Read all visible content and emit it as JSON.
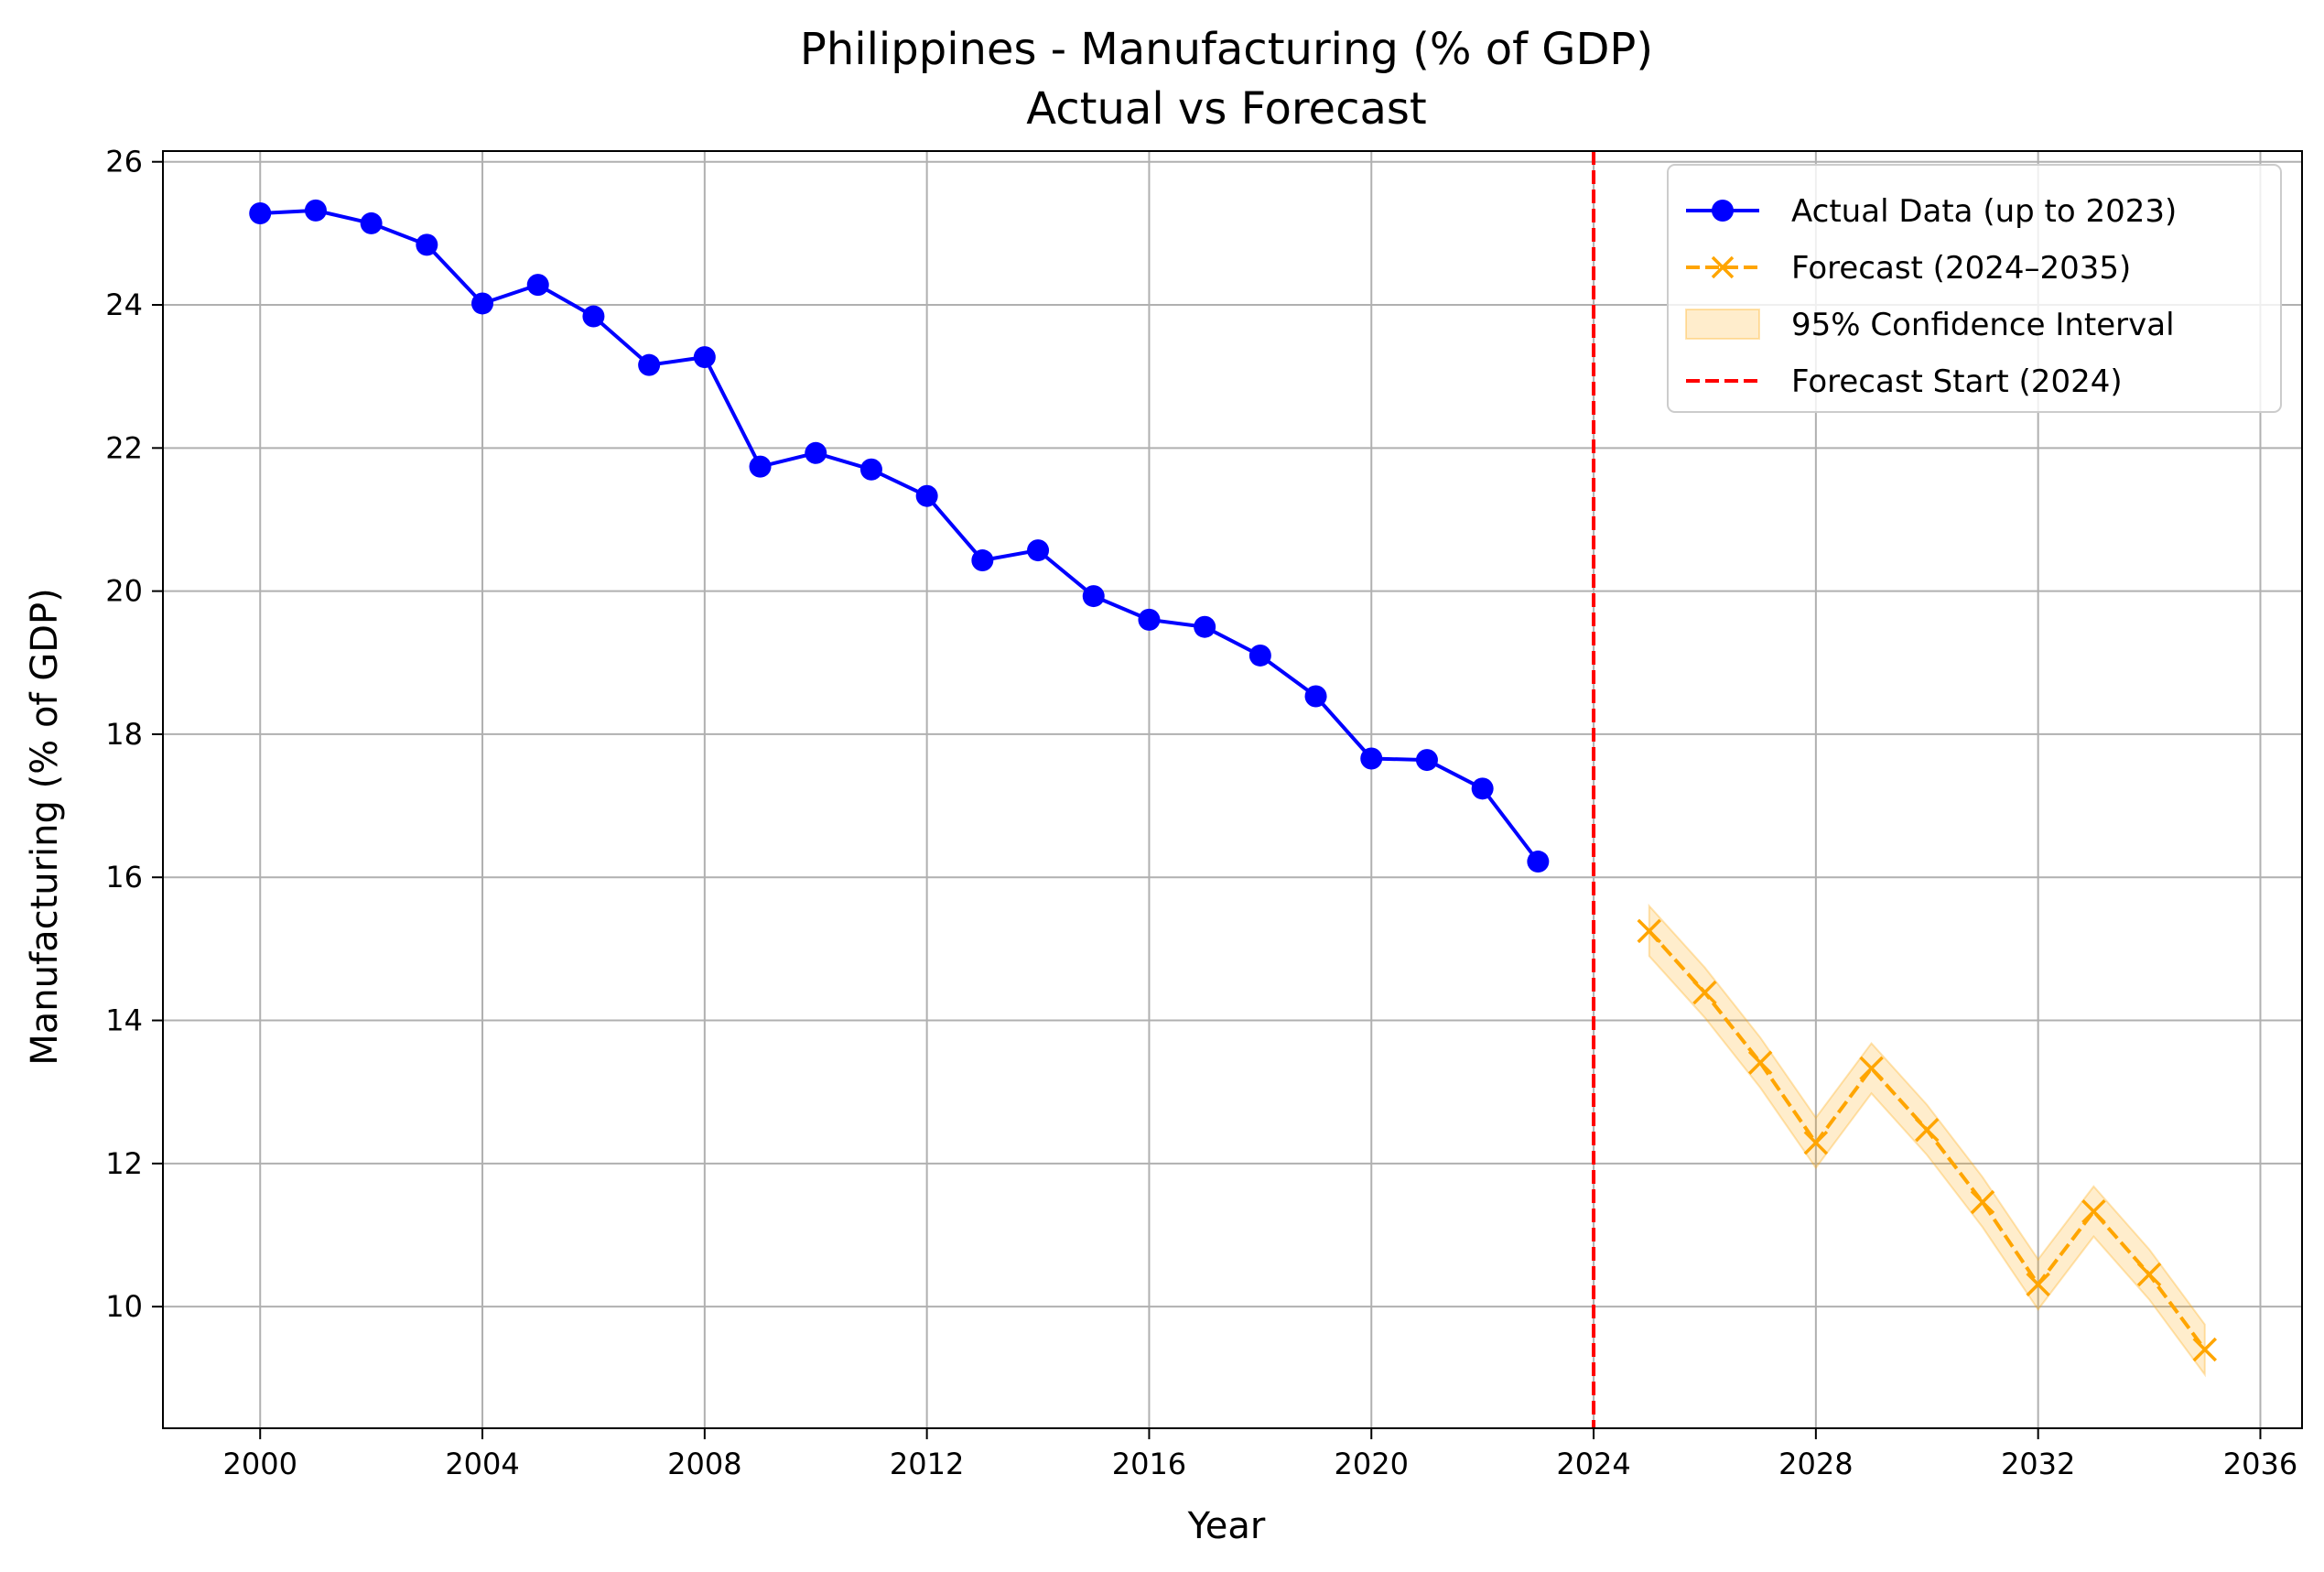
{
  "chart_data": {
    "type": "line",
    "title": "Philippines - Manufacturing (% of GDP)",
    "subtitle": "Actual vs Forecast",
    "xlabel": "Year",
    "ylabel": "Manufacturing (% of GDP)",
    "xlim": [
      1998.25,
      2036.75
    ],
    "ylim": [
      8.3,
      26.15
    ],
    "xticks": [
      2000,
      2004,
      2008,
      2012,
      2016,
      2020,
      2024,
      2028,
      2032,
      2036
    ],
    "yticks": [
      10,
      12,
      14,
      16,
      18,
      20,
      22,
      24,
      26
    ],
    "grid": true,
    "legend_position": "top-right",
    "series": [
      {
        "name": "Actual Data (up to 2023)",
        "color": "#0000ff",
        "marker": "circle",
        "x": [
          2000,
          2001,
          2002,
          2003,
          2004,
          2005,
          2006,
          2007,
          2008,
          2009,
          2010,
          2011,
          2012,
          2013,
          2014,
          2015,
          2016,
          2017,
          2018,
          2019,
          2020,
          2021,
          2022,
          2023
        ],
        "y": [
          25.28,
          25.32,
          25.14,
          24.84,
          24.02,
          24.28,
          23.84,
          23.16,
          23.27,
          21.74,
          21.93,
          21.7,
          21.33,
          20.43,
          20.57,
          19.93,
          19.6,
          19.5,
          19.1,
          18.53,
          17.66,
          17.64,
          17.24,
          16.22
        ]
      },
      {
        "name": "Forecast (2024–2035)",
        "color": "#ffa500",
        "marker": "x",
        "x": [
          2025,
          2026,
          2027,
          2028,
          2029,
          2030,
          2031,
          2032,
          2033,
          2034,
          2035
        ],
        "y": [
          15.25,
          14.39,
          13.41,
          12.29,
          13.33,
          12.47,
          11.46,
          10.31,
          11.33,
          10.45,
          9.4
        ]
      }
    ],
    "confidence_interval": {
      "name": "95% Confidence Interval",
      "color": "#ffa500",
      "x": [
        2025,
        2026,
        2027,
        2028,
        2029,
        2030,
        2031,
        2032,
        2033,
        2034,
        2035
      ],
      "lower": [
        14.9,
        14.04,
        13.06,
        11.94,
        12.98,
        12.12,
        11.11,
        9.96,
        10.98,
        10.1,
        9.05
      ],
      "upper": [
        15.6,
        14.74,
        13.76,
        12.64,
        13.68,
        12.82,
        11.81,
        10.66,
        11.68,
        10.8,
        9.75
      ]
    },
    "vline": {
      "name": "Forecast Start (2024)",
      "x": 2024,
      "color": "#ff0000"
    }
  }
}
